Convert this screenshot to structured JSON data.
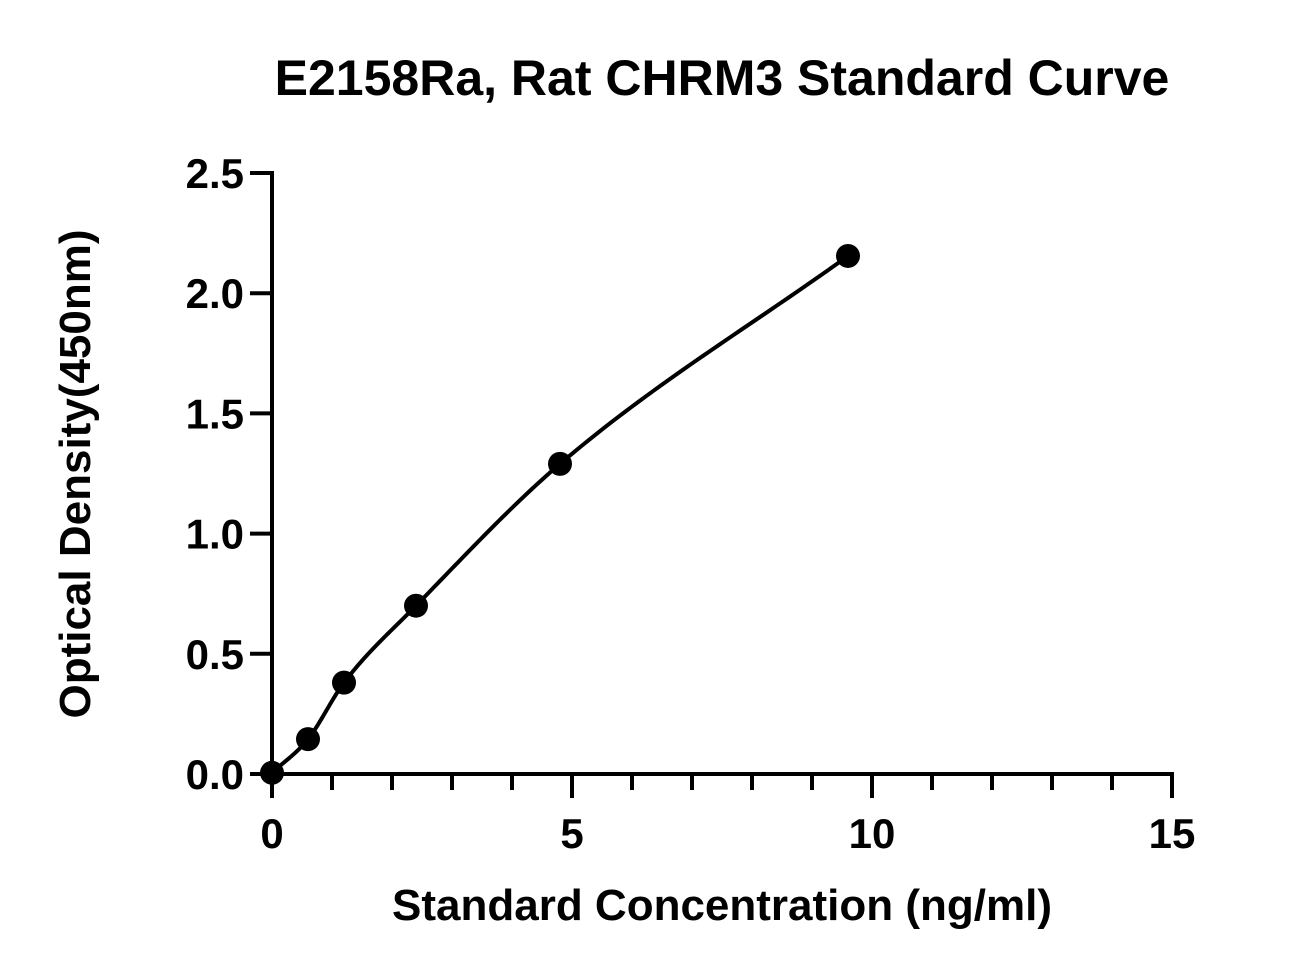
{
  "chart_data": {
    "type": "scatter",
    "title": "E2158Ra, Rat CHRM3 Standard Curve",
    "xlabel": "Standard Concentration (ng/ml)",
    "ylabel": "Optical Density(450nm)",
    "xlim": [
      0,
      15
    ],
    "ylim": [
      0,
      2.5
    ],
    "x_ticks": [
      0,
      5,
      10,
      15
    ],
    "x_tick_labels": [
      "0",
      "5",
      "10",
      "15"
    ],
    "x_minor_step": 1,
    "y_ticks": [
      0,
      0.5,
      1.0,
      1.5,
      2.0,
      2.5
    ],
    "y_tick_labels": [
      "0.0",
      "0.5",
      "1.0",
      "1.5",
      "2.0",
      "2.5"
    ],
    "grid": false,
    "series": [
      {
        "x": [
          0,
          0.6,
          1.2,
          2.4,
          4.8,
          9.6
        ],
        "y": [
          0.005,
          0.145,
          0.38,
          0.7,
          1.29,
          2.155
        ],
        "color": "#000000",
        "marker": "circle",
        "fit_curve": true
      }
    ]
  }
}
